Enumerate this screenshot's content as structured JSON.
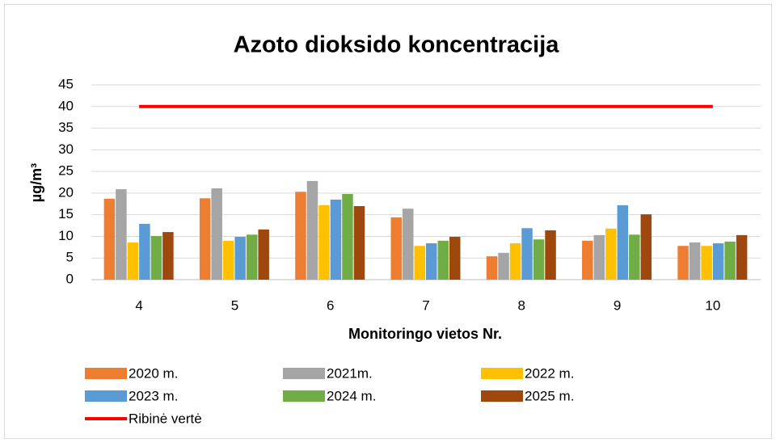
{
  "chart_data": {
    "type": "bar",
    "title": "Azoto dioksido koncentracija",
    "x_label": "Monitoringo vietos Nr.",
    "y_label": "µg/m³",
    "categories": [
      "4",
      "5",
      "6",
      "7",
      "8",
      "9",
      "10"
    ],
    "series": [
      {
        "name": "2020 m.",
        "color": "#ed7d31",
        "values": [
          18.7,
          18.8,
          20.3,
          14.4,
          5.4,
          9.0,
          7.8
        ]
      },
      {
        "name": "2021m.",
        "color": "#a5a5a5",
        "values": [
          20.9,
          21.1,
          22.8,
          16.4,
          6.2,
          10.3,
          8.6
        ]
      },
      {
        "name": "2022 m.",
        "color": "#ffc000",
        "values": [
          8.6,
          9.0,
          17.2,
          7.8,
          8.4,
          11.8,
          7.8
        ]
      },
      {
        "name": "2023 m.",
        "color": "#5b9bd5",
        "values": [
          12.9,
          9.9,
          18.5,
          8.4,
          11.9,
          17.2,
          8.4
        ]
      },
      {
        "name": "2024 m.",
        "color": "#70ad47",
        "values": [
          10.1,
          10.4,
          19.8,
          9.0,
          9.3,
          10.4,
          8.8
        ]
      },
      {
        "name": "2025 m.",
        "color": "#9e480e",
        "values": [
          11.0,
          11.6,
          17.0,
          9.9,
          11.4,
          15.1,
          10.3
        ]
      },
      {
        "name": "Ribinė vertė",
        "type": "line",
        "color": "#ff0000",
        "values": [
          40,
          40,
          40,
          40,
          40,
          40,
          40
        ]
      }
    ],
    "ylim": [
      0,
      45
    ],
    "yticks": [
      0,
      5,
      10,
      15,
      20,
      25,
      30,
      35,
      40,
      45
    ],
    "grid": true
  }
}
